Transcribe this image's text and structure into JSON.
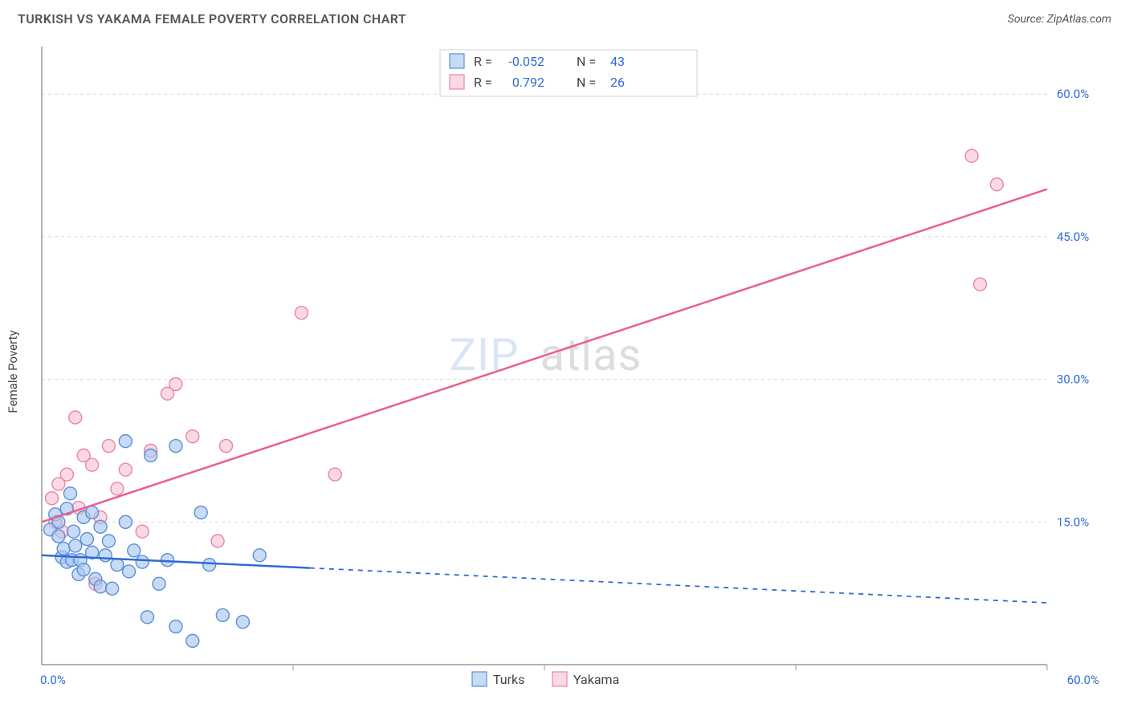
{
  "title": "TURKISH VS YAKAMA FEMALE POVERTY CORRELATION CHART",
  "source": "Source: ZipAtlas.com",
  "ylabel": "Female Poverty",
  "watermark_zip": "ZIP",
  "watermark_atlas": "atlas",
  "chart": {
    "type": "scatter",
    "xlim": [
      0,
      60
    ],
    "ylim": [
      0,
      65
    ],
    "background_color": "#ffffff",
    "grid_color": "#d9d9d9",
    "axis_color": "#999999",
    "y_ticks": [
      15,
      30,
      45,
      60
    ],
    "y_tick_labels": [
      "15.0%",
      "30.0%",
      "45.0%",
      "60.0%"
    ],
    "x_min_label": "0.0%",
    "x_max_label": "60.0%",
    "x_ticks_minor": [
      15,
      30,
      45,
      60
    ],
    "marker_radius": 8,
    "marker_stroke_width": 1.4,
    "series": {
      "turks": {
        "label": "Turks",
        "R": "-0.052",
        "N": "43",
        "fill": "#a9c7ef",
        "stroke": "#5a8fd8",
        "points": [
          [
            0.5,
            14.2
          ],
          [
            0.8,
            15.8
          ],
          [
            1.0,
            13.5
          ],
          [
            1.0,
            15.0
          ],
          [
            1.2,
            11.3
          ],
          [
            1.3,
            12.2
          ],
          [
            1.5,
            16.4
          ],
          [
            1.5,
            10.8
          ],
          [
            1.7,
            18.0
          ],
          [
            1.8,
            11.0
          ],
          [
            1.9,
            14.0
          ],
          [
            2.0,
            12.5
          ],
          [
            2.2,
            9.5
          ],
          [
            2.3,
            11.0
          ],
          [
            2.5,
            15.5
          ],
          [
            2.5,
            10.0
          ],
          [
            2.7,
            13.2
          ],
          [
            3.0,
            16.0
          ],
          [
            3.0,
            11.8
          ],
          [
            3.2,
            9.0
          ],
          [
            3.5,
            14.5
          ],
          [
            3.5,
            8.2
          ],
          [
            3.8,
            11.5
          ],
          [
            4.0,
            13.0
          ],
          [
            4.2,
            8.0
          ],
          [
            4.5,
            10.5
          ],
          [
            5.0,
            15.0
          ],
          [
            5.0,
            23.5
          ],
          [
            5.2,
            9.8
          ],
          [
            5.5,
            12.0
          ],
          [
            6.0,
            10.8
          ],
          [
            6.3,
            5.0
          ],
          [
            6.5,
            22.0
          ],
          [
            7.0,
            8.5
          ],
          [
            7.5,
            11.0
          ],
          [
            8.0,
            4.0
          ],
          [
            8.0,
            23.0
          ],
          [
            9.0,
            2.5
          ],
          [
            9.5,
            16.0
          ],
          [
            10.0,
            10.5
          ],
          [
            10.8,
            5.2
          ],
          [
            12.0,
            4.5
          ],
          [
            13.0,
            11.5
          ]
        ],
        "trend": {
          "y_start": 11.5,
          "y_end": 6.5,
          "solid_x_end": 16
        }
      },
      "yakama": {
        "label": "Yakama",
        "R": "0.792",
        "N": "26",
        "fill": "#f7c5d5",
        "stroke": "#e885a5",
        "points": [
          [
            0.6,
            17.5
          ],
          [
            0.8,
            15.0
          ],
          [
            1.0,
            19.0
          ],
          [
            1.2,
            14.0
          ],
          [
            1.5,
            20.0
          ],
          [
            2.0,
            26.0
          ],
          [
            2.2,
            16.5
          ],
          [
            2.5,
            22.0
          ],
          [
            3.0,
            21.0
          ],
          [
            3.2,
            8.5
          ],
          [
            3.5,
            15.5
          ],
          [
            4.0,
            23.0
          ],
          [
            4.5,
            18.5
          ],
          [
            5.0,
            20.5
          ],
          [
            6.0,
            14.0
          ],
          [
            6.5,
            22.5
          ],
          [
            7.5,
            28.5
          ],
          [
            8.0,
            29.5
          ],
          [
            9.0,
            24.0
          ],
          [
            10.5,
            13.0
          ],
          [
            11.0,
            23.0
          ],
          [
            15.5,
            37.0
          ],
          [
            17.5,
            20.0
          ],
          [
            55.5,
            53.5
          ],
          [
            56.0,
            40.0
          ],
          [
            57.0,
            50.5
          ]
        ],
        "trend": {
          "y_start": 15.0,
          "y_end": 50.0
        }
      }
    }
  },
  "top_legend": {
    "r_label": "R =",
    "n_label": "N ="
  }
}
